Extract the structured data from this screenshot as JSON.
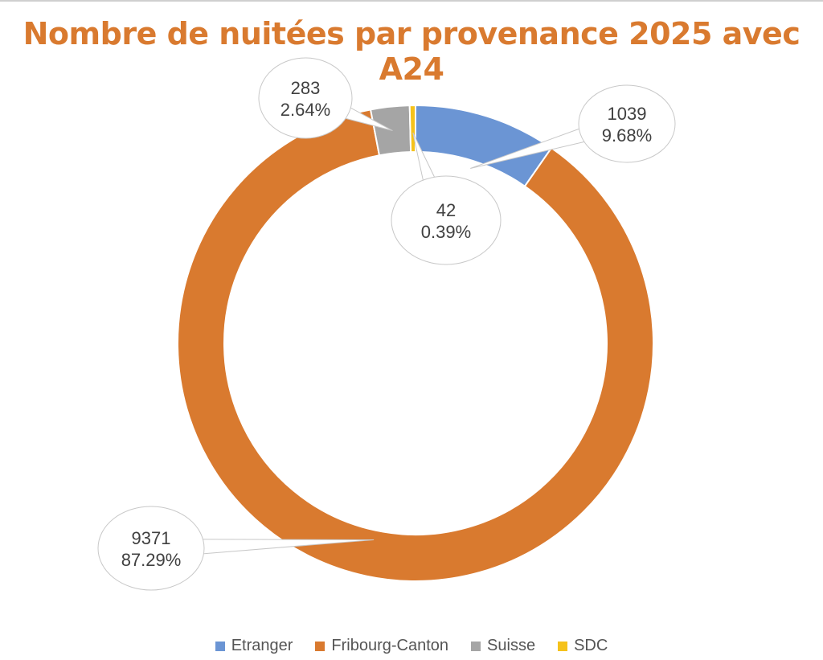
{
  "chart_data": {
    "type": "pie",
    "variant": "donut",
    "title": "Nombre de nuitées par provenance 2025 avec A24",
    "categories": [
      "Etranger",
      "Fribourg-Canton",
      "Suisse",
      "SDC"
    ],
    "values": [
      1039,
      9371,
      283,
      42
    ],
    "percent_labels": [
      "9.68%",
      "87.29%",
      "2.64%",
      "0.39%"
    ],
    "colors": [
      "#6b95d4",
      "#d97a2f",
      "#a5a5a5",
      "#f5c21b"
    ],
    "legend_position": "bottom"
  }
}
